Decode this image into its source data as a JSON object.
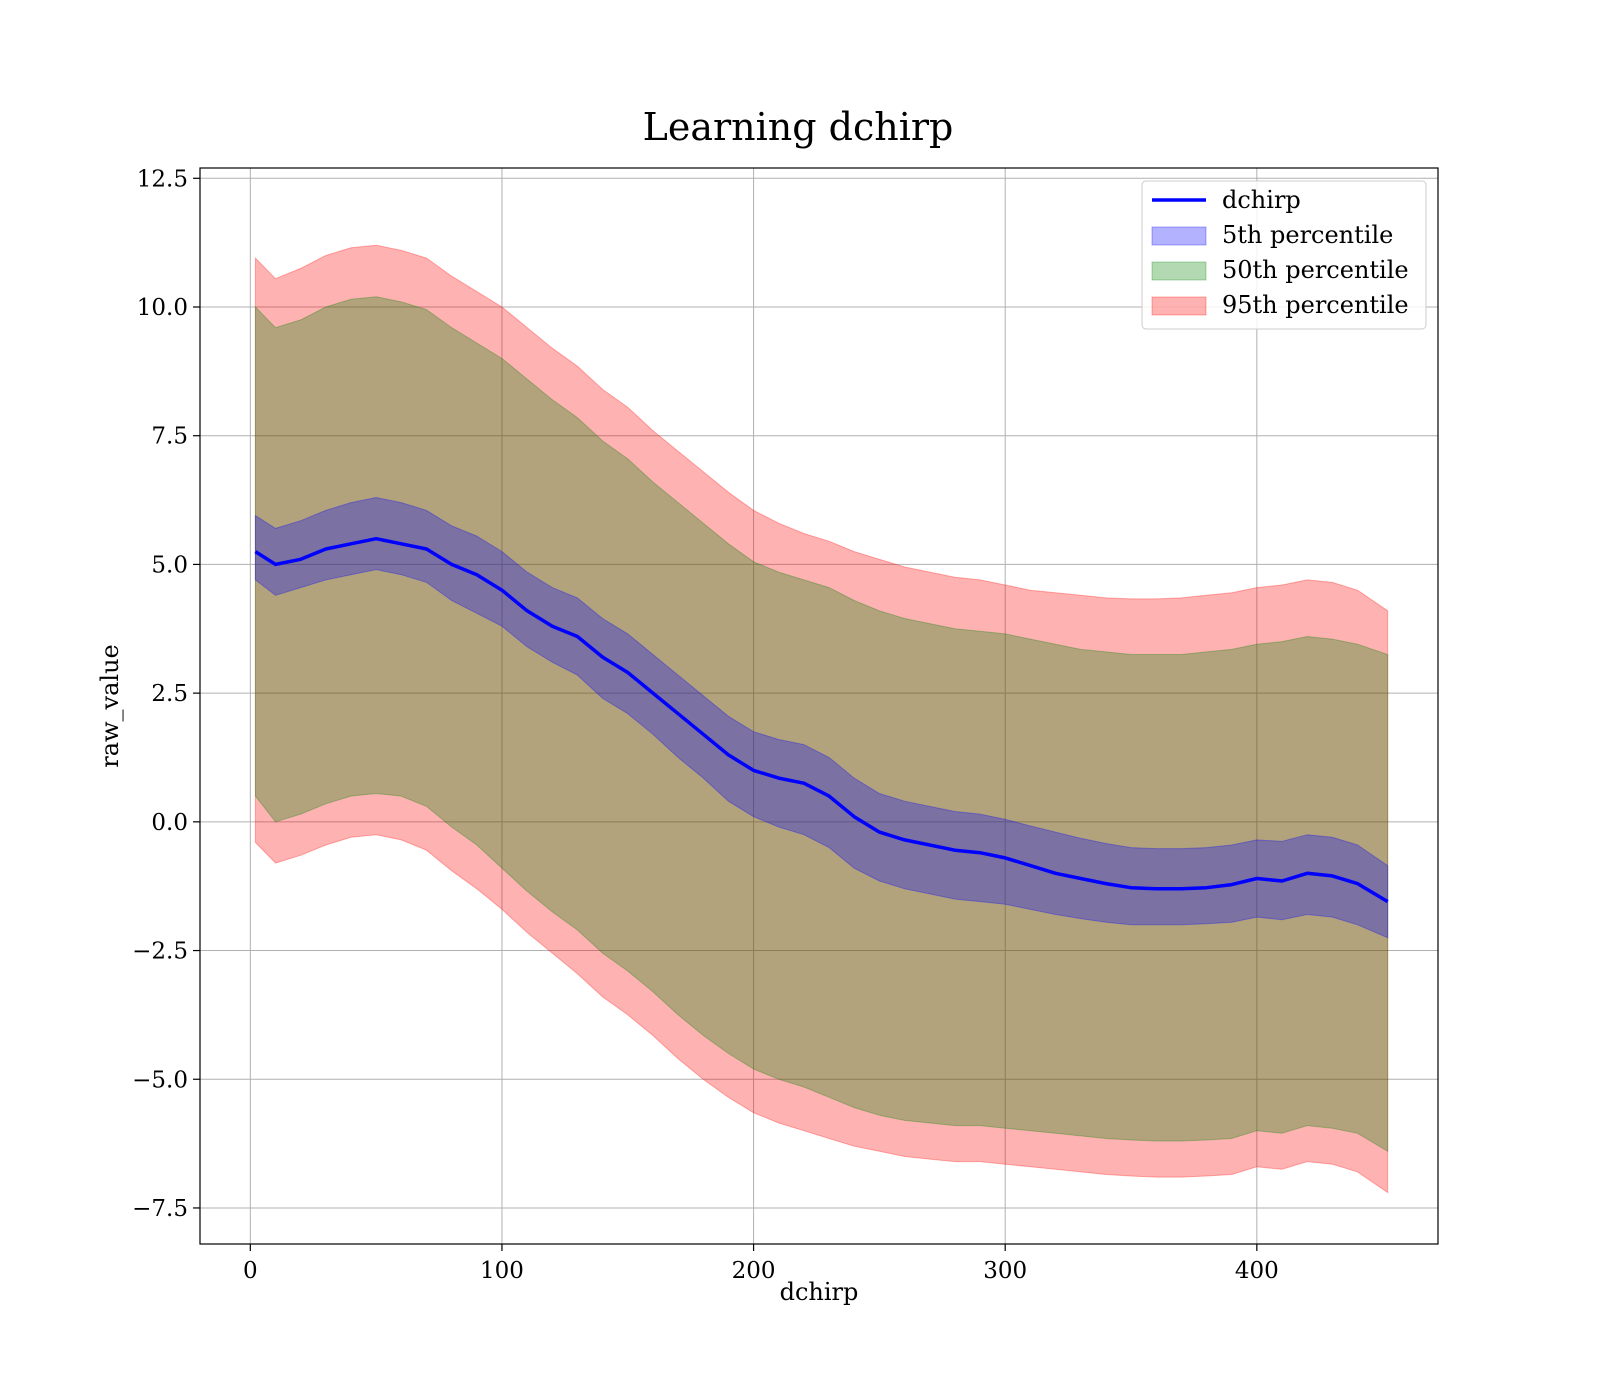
{
  "chart_data": {
    "type": "area",
    "title": "Learning dchirp",
    "xlabel": "dchirp",
    "ylabel": "raw_value",
    "xlim": [
      -20,
      472
    ],
    "ylim": [
      -8.2,
      12.7
    ],
    "xticks": [
      0,
      100,
      200,
      300,
      400
    ],
    "yticks": [
      -7.5,
      -5.0,
      -2.5,
      0.0,
      2.5,
      5.0,
      7.5,
      10.0,
      12.5
    ],
    "xtick_labels": [
      "0",
      "100",
      "200",
      "300",
      "400"
    ],
    "ytick_labels": [
      "−7.5",
      "−5.0",
      "−2.5",
      "0.0",
      "2.5",
      "5.0",
      "7.5",
      "10.0",
      "12.5"
    ],
    "grid": true,
    "legend_position": "top-right",
    "colors": {
      "line": "#0000ff",
      "p5": "#0000ff",
      "p50": "#008000",
      "p95": "#ff0000"
    },
    "x": [
      2,
      10,
      20,
      30,
      40,
      50,
      60,
      70,
      80,
      90,
      100,
      110,
      120,
      130,
      140,
      150,
      160,
      170,
      180,
      190,
      200,
      210,
      220,
      230,
      240,
      250,
      260,
      270,
      280,
      290,
      300,
      310,
      320,
      330,
      340,
      350,
      360,
      370,
      380,
      390,
      400,
      410,
      420,
      430,
      440,
      452
    ],
    "series": [
      {
        "name": "dchirp",
        "kind": "line",
        "values": [
          5.25,
          5.0,
          5.1,
          5.3,
          5.4,
          5.5,
          5.4,
          5.3,
          5.0,
          4.8,
          4.5,
          4.1,
          3.8,
          3.6,
          3.2,
          2.9,
          2.5,
          2.1,
          1.7,
          1.3,
          1.0,
          0.85,
          0.75,
          0.5,
          0.1,
          -0.2,
          -0.35,
          -0.45,
          -0.55,
          -0.6,
          -0.7,
          -0.85,
          -1.0,
          -1.1,
          -1.2,
          -1.28,
          -1.3,
          -1.3,
          -1.28,
          -1.22,
          -1.1,
          -1.15,
          -1.0,
          -1.05,
          -1.2,
          -1.55
        ]
      },
      {
        "name": "5th percentile",
        "kind": "band",
        "lower": [
          4.7,
          4.4,
          4.55,
          4.7,
          4.8,
          4.9,
          4.8,
          4.65,
          4.3,
          4.05,
          3.8,
          3.4,
          3.1,
          2.85,
          2.4,
          2.1,
          1.7,
          1.25,
          0.85,
          0.4,
          0.1,
          -0.1,
          -0.25,
          -0.5,
          -0.9,
          -1.15,
          -1.3,
          -1.4,
          -1.5,
          -1.55,
          -1.6,
          -1.7,
          -1.8,
          -1.88,
          -1.95,
          -2.0,
          -2.0,
          -2.0,
          -1.98,
          -1.95,
          -1.85,
          -1.9,
          -1.8,
          -1.85,
          -2.0,
          -2.25
        ],
        "upper": [
          5.95,
          5.7,
          5.85,
          6.05,
          6.2,
          6.3,
          6.2,
          6.05,
          5.75,
          5.55,
          5.25,
          4.85,
          4.55,
          4.35,
          3.95,
          3.65,
          3.25,
          2.85,
          2.45,
          2.05,
          1.75,
          1.6,
          1.5,
          1.25,
          0.85,
          0.55,
          0.4,
          0.3,
          0.2,
          0.15,
          0.05,
          -0.08,
          -0.2,
          -0.32,
          -0.42,
          -0.5,
          -0.52,
          -0.52,
          -0.5,
          -0.45,
          -0.35,
          -0.38,
          -0.25,
          -0.3,
          -0.45,
          -0.85
        ]
      },
      {
        "name": "50th percentile",
        "kind": "band",
        "lower": [
          0.5,
          0.0,
          0.15,
          0.35,
          0.5,
          0.55,
          0.5,
          0.3,
          -0.1,
          -0.45,
          -0.9,
          -1.35,
          -1.75,
          -2.1,
          -2.55,
          -2.9,
          -3.3,
          -3.75,
          -4.15,
          -4.5,
          -4.8,
          -5.0,
          -5.15,
          -5.35,
          -5.55,
          -5.7,
          -5.8,
          -5.85,
          -5.9,
          -5.9,
          -5.95,
          -6.0,
          -6.05,
          -6.1,
          -6.15,
          -6.18,
          -6.2,
          -6.2,
          -6.18,
          -6.15,
          -6.0,
          -6.05,
          -5.9,
          -5.95,
          -6.05,
          -6.4
        ],
        "upper": [
          10.0,
          9.6,
          9.75,
          10.0,
          10.15,
          10.2,
          10.1,
          9.95,
          9.6,
          9.3,
          9.0,
          8.6,
          8.2,
          7.85,
          7.4,
          7.05,
          6.6,
          6.2,
          5.8,
          5.4,
          5.05,
          4.85,
          4.7,
          4.55,
          4.3,
          4.1,
          3.95,
          3.85,
          3.75,
          3.7,
          3.65,
          3.55,
          3.45,
          3.35,
          3.3,
          3.25,
          3.25,
          3.25,
          3.3,
          3.35,
          3.45,
          3.5,
          3.6,
          3.55,
          3.45,
          3.25
        ]
      },
      {
        "name": "95th percentile",
        "kind": "band",
        "lower": [
          -0.4,
          -0.8,
          -0.65,
          -0.45,
          -0.3,
          -0.25,
          -0.35,
          -0.55,
          -0.95,
          -1.3,
          -1.7,
          -2.15,
          -2.55,
          -2.95,
          -3.4,
          -3.75,
          -4.15,
          -4.6,
          -5.0,
          -5.35,
          -5.65,
          -5.85,
          -6.0,
          -6.15,
          -6.3,
          -6.4,
          -6.5,
          -6.55,
          -6.6,
          -6.6,
          -6.65,
          -6.7,
          -6.75,
          -6.8,
          -6.85,
          -6.88,
          -6.9,
          -6.9,
          -6.88,
          -6.85,
          -6.7,
          -6.75,
          -6.6,
          -6.65,
          -6.8,
          -7.2
        ],
        "upper": [
          10.95,
          10.55,
          10.75,
          11.0,
          11.15,
          11.2,
          11.1,
          10.95,
          10.6,
          10.3,
          10.0,
          9.6,
          9.2,
          8.85,
          8.4,
          8.05,
          7.6,
          7.2,
          6.8,
          6.4,
          6.05,
          5.8,
          5.6,
          5.45,
          5.25,
          5.1,
          4.95,
          4.85,
          4.75,
          4.7,
          4.6,
          4.5,
          4.45,
          4.4,
          4.35,
          4.33,
          4.33,
          4.35,
          4.4,
          4.45,
          4.55,
          4.6,
          4.7,
          4.65,
          4.5,
          4.1
        ]
      }
    ]
  }
}
